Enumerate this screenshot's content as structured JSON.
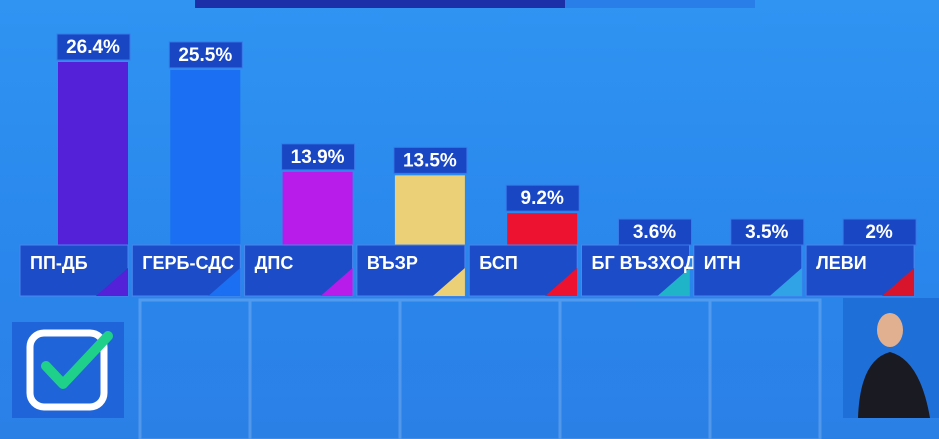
{
  "chart_data": {
    "type": "bar",
    "categories": [
      "ПП-ДБ",
      "ГЕРБ-СДС",
      "ДПС",
      "ВЪЗР",
      "БСП",
      "БГ ВЪЗХОД",
      "ИТН",
      "ЛЕВИ"
    ],
    "values": [
      26.4,
      25.5,
      13.9,
      13.5,
      9.2,
      3.6,
      3.5,
      2
    ],
    "value_labels": [
      "26.4%",
      "25.5%",
      "13.9%",
      "13.5%",
      "9.2%",
      "3.6%",
      "3.5%",
      "2%"
    ],
    "colors": [
      "#5420d8",
      "#1a6ff2",
      "#b81ceb",
      "#ecd077",
      "#ec1230",
      "#1fb4c8",
      "#2fa3e6",
      "#d8142c"
    ]
  }
}
